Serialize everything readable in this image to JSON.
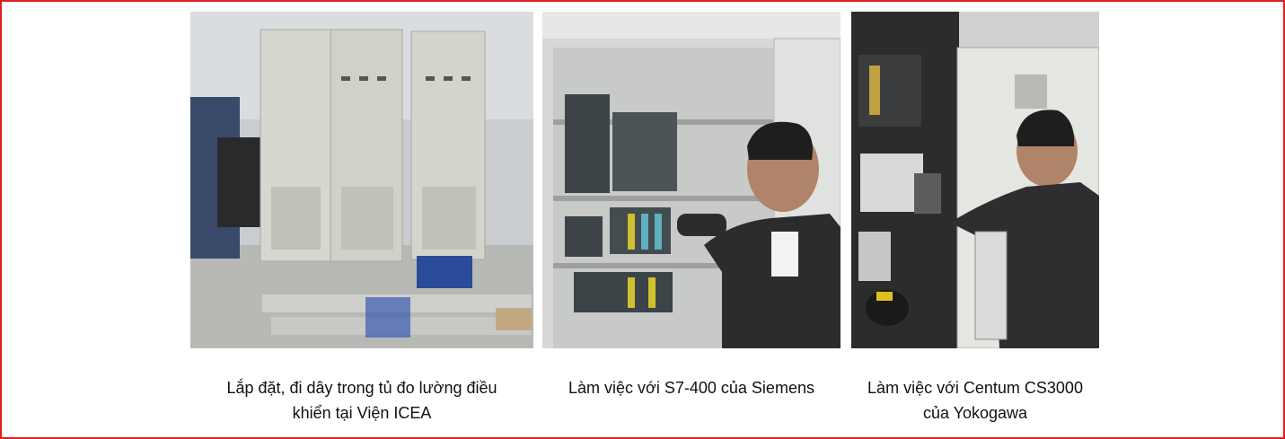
{
  "photos": [
    {
      "icon": "cabinet-wiring-photo",
      "caption_lines": [
        "Lắp đặt, đi dây trong tủ đo lường điều",
        "khiển tại Viện ICEA"
      ]
    },
    {
      "icon": "siemens-plc-photo",
      "caption_lines": [
        "Làm việc với S7-400 của Siemens"
      ]
    },
    {
      "icon": "yokogawa-dcs-photo",
      "caption_lines": [
        "Làm việc với Centum CS3000",
        "của Yokogawa"
      ]
    }
  ],
  "colors": {
    "border": "#e02020",
    "caption_text": "#111111"
  }
}
